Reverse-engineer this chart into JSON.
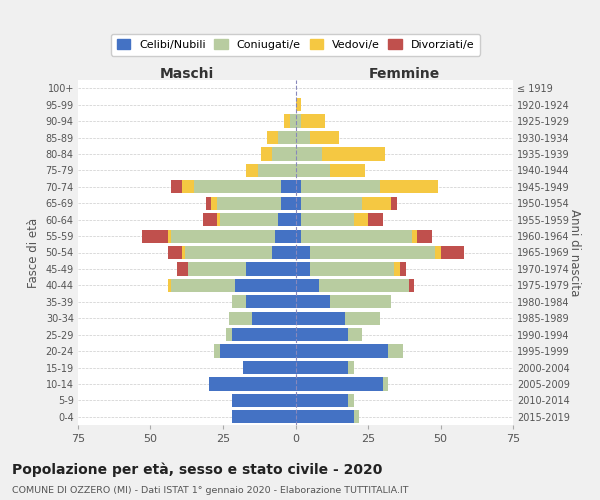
{
  "age_groups": [
    "0-4",
    "5-9",
    "10-14",
    "15-19",
    "20-24",
    "25-29",
    "30-34",
    "35-39",
    "40-44",
    "45-49",
    "50-54",
    "55-59",
    "60-64",
    "65-69",
    "70-74",
    "75-79",
    "80-84",
    "85-89",
    "90-94",
    "95-99",
    "100+"
  ],
  "birth_years": [
    "2015-2019",
    "2010-2014",
    "2005-2009",
    "2000-2004",
    "1995-1999",
    "1990-1994",
    "1985-1989",
    "1980-1984",
    "1975-1979",
    "1970-1974",
    "1965-1969",
    "1960-1964",
    "1955-1959",
    "1950-1954",
    "1945-1949",
    "1940-1944",
    "1935-1939",
    "1930-1934",
    "1925-1929",
    "1920-1924",
    "≤ 1919"
  ],
  "male_celibi": [
    22,
    22,
    30,
    18,
    26,
    22,
    15,
    17,
    21,
    17,
    8,
    7,
    6,
    5,
    5,
    0,
    0,
    0,
    0,
    0,
    0
  ],
  "male_coniugati": [
    0,
    0,
    0,
    0,
    2,
    2,
    8,
    5,
    22,
    20,
    30,
    36,
    20,
    22,
    30,
    13,
    8,
    6,
    2,
    0,
    0
  ],
  "male_vedovi": [
    0,
    0,
    0,
    0,
    0,
    0,
    0,
    0,
    1,
    0,
    1,
    1,
    1,
    2,
    4,
    4,
    4,
    4,
    2,
    0,
    0
  ],
  "male_divorziati": [
    0,
    0,
    0,
    0,
    0,
    0,
    0,
    0,
    0,
    4,
    5,
    9,
    5,
    2,
    4,
    0,
    0,
    0,
    0,
    0,
    0
  ],
  "female_nubili": [
    20,
    18,
    30,
    18,
    32,
    18,
    17,
    12,
    8,
    5,
    5,
    2,
    2,
    2,
    2,
    0,
    0,
    0,
    0,
    0,
    0
  ],
  "female_coniugate": [
    2,
    2,
    2,
    2,
    5,
    5,
    12,
    21,
    31,
    29,
    43,
    38,
    18,
    21,
    27,
    12,
    9,
    5,
    2,
    0,
    0
  ],
  "female_vedove": [
    0,
    0,
    0,
    0,
    0,
    0,
    0,
    0,
    0,
    2,
    2,
    2,
    5,
    10,
    20,
    12,
    22,
    10,
    8,
    2,
    0
  ],
  "female_divorziate": [
    0,
    0,
    0,
    0,
    0,
    0,
    0,
    0,
    2,
    2,
    8,
    5,
    5,
    2,
    0,
    0,
    0,
    0,
    0,
    0,
    0
  ],
  "color_celibi": "#4472c4",
  "color_coniugati": "#b8cca0",
  "color_vedovi": "#f5c842",
  "color_divorziati": "#c0504d",
  "xlim": 75,
  "title": "Popolazione per età, sesso e stato civile - 2020",
  "subtitle": "COMUNE DI OZZERO (MI) - Dati ISTAT 1° gennaio 2020 - Elaborazione TUTTITALIA.IT",
  "ylabel_left": "Fasce di età",
  "ylabel_right": "Anni di nascita",
  "header_maschi": "Maschi",
  "header_femmine": "Femmine",
  "legend_celibi": "Celibi/Nubili",
  "legend_coniugati": "Coniugati/e",
  "legend_vedovi": "Vedovi/e",
  "legend_divorziati": "Divorziati/e",
  "bg_color": "#f0f0f0",
  "plot_bg_color": "#ffffff"
}
